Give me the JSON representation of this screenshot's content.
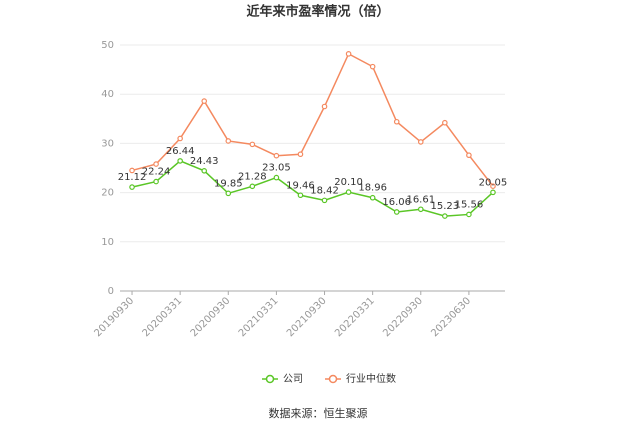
{
  "chart_data": {
    "type": "line",
    "title": "近年来市盈率情况（倍）",
    "categories": [
      "20190930",
      null,
      "20200331",
      null,
      "20200930",
      null,
      "20210331",
      null,
      "20210930",
      null,
      "20220331",
      null,
      "20220930",
      null,
      "20230630",
      null
    ],
    "series": [
      {
        "name": "公司",
        "color": "#5ac626",
        "values": [
          21.12,
          22.24,
          26.44,
          24.43,
          19.85,
          21.28,
          23.05,
          19.46,
          18.42,
          20.1,
          18.96,
          16.06,
          16.61,
          15.23,
          15.56,
          20.05
        ],
        "value_labels": [
          "21.12",
          "22.24",
          "26.44",
          "24.43",
          "19.85",
          "21.28",
          "23.05",
          "19.46",
          "18.42",
          "20.10",
          "18.96",
          "16.06",
          "16.61",
          "15.23",
          "15.56",
          "20.05"
        ]
      },
      {
        "name": "行业中位数",
        "color": "#f4895f",
        "values": [
          24.5,
          25.8,
          31.0,
          38.6,
          30.5,
          29.8,
          27.5,
          27.8,
          37.5,
          48.2,
          45.6,
          34.4,
          30.3,
          34.2,
          27.6,
          21.3
        ]
      }
    ],
    "ylim": [
      0,
      50
    ],
    "yticks": [
      0,
      10,
      20,
      30,
      40,
      50
    ],
    "grid": true,
    "source": "数据来源：恒生聚源"
  }
}
